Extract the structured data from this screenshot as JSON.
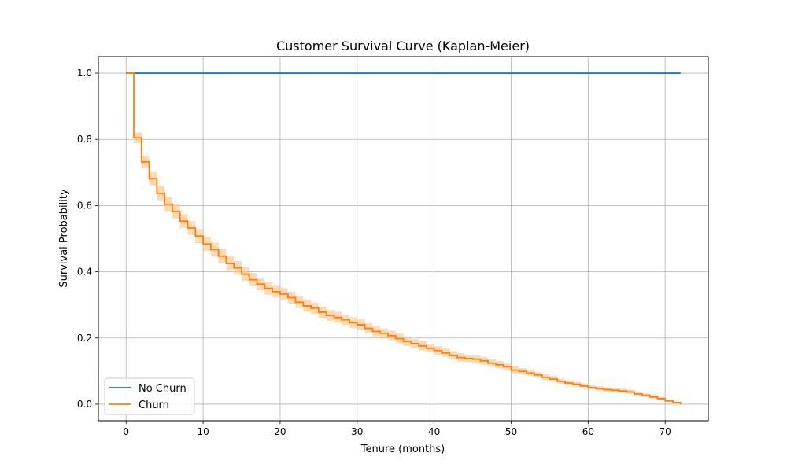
{
  "chart_data": {
    "type": "line",
    "title": "Customer Survival Curve (Kaplan-Meier)",
    "xlabel": "Tenure (months)",
    "ylabel": "Survival Probability",
    "xlim": [
      -3.6,
      75.6
    ],
    "ylim": [
      -0.05,
      1.05
    ],
    "x_ticks": [
      0,
      10,
      20,
      30,
      40,
      50,
      60,
      70
    ],
    "x_tick_labels": [
      "0",
      "10",
      "20",
      "30",
      "40",
      "50",
      "60",
      "70"
    ],
    "y_ticks": [
      0.0,
      0.2,
      0.4,
      0.6,
      0.8,
      1.0
    ],
    "y_tick_labels": [
      "0.0",
      "0.2",
      "0.4",
      "0.6",
      "0.8",
      "1.0"
    ],
    "grid": true,
    "legend_position": "lower-left",
    "step": "post",
    "series": [
      {
        "name": "No Churn",
        "color": "#1f77b4",
        "x": [
          0,
          72
        ],
        "y": [
          1.0,
          1.0
        ]
      },
      {
        "name": "Churn",
        "color": "#ff7f0e",
        "ci_color": "#ffbb78",
        "x": [
          0,
          1,
          2,
          3,
          4,
          5,
          6,
          7,
          8,
          9,
          10,
          11,
          12,
          13,
          14,
          15,
          16,
          17,
          18,
          19,
          20,
          21,
          22,
          23,
          24,
          25,
          26,
          27,
          28,
          29,
          30,
          31,
          32,
          33,
          34,
          35,
          36,
          37,
          38,
          39,
          40,
          41,
          42,
          43,
          44,
          45,
          46,
          47,
          48,
          49,
          50,
          51,
          52,
          53,
          54,
          55,
          56,
          57,
          58,
          59,
          60,
          61,
          62,
          63,
          64,
          65,
          66,
          67,
          68,
          69,
          70,
          71,
          72
        ],
        "y": [
          1.0,
          0.805,
          0.732,
          0.681,
          0.637,
          0.604,
          0.582,
          0.553,
          0.532,
          0.508,
          0.484,
          0.467,
          0.447,
          0.425,
          0.412,
          0.393,
          0.376,
          0.363,
          0.35,
          0.34,
          0.333,
          0.322,
          0.308,
          0.297,
          0.29,
          0.278,
          0.268,
          0.262,
          0.255,
          0.246,
          0.24,
          0.229,
          0.22,
          0.214,
          0.207,
          0.198,
          0.19,
          0.183,
          0.176,
          0.169,
          0.162,
          0.155,
          0.147,
          0.141,
          0.138,
          0.136,
          0.131,
          0.124,
          0.119,
          0.113,
          0.103,
          0.099,
          0.094,
          0.088,
          0.081,
          0.076,
          0.069,
          0.064,
          0.06,
          0.055,
          0.05,
          0.047,
          0.044,
          0.042,
          0.04,
          0.037,
          0.031,
          0.027,
          0.022,
          0.017,
          0.01,
          0.005,
          0.0
        ],
        "ci_lower": [
          1.0,
          0.788,
          0.713,
          0.661,
          0.616,
          0.583,
          0.56,
          0.532,
          0.511,
          0.487,
          0.463,
          0.446,
          0.426,
          0.405,
          0.392,
          0.373,
          0.357,
          0.344,
          0.331,
          0.322,
          0.315,
          0.304,
          0.291,
          0.28,
          0.273,
          0.261,
          0.252,
          0.246,
          0.239,
          0.23,
          0.224,
          0.214,
          0.205,
          0.199,
          0.193,
          0.184,
          0.176,
          0.169,
          0.163,
          0.156,
          0.149,
          0.143,
          0.135,
          0.129,
          0.127,
          0.125,
          0.12,
          0.113,
          0.108,
          0.103,
          0.093,
          0.09,
          0.085,
          0.08,
          0.073,
          0.068,
          0.062,
          0.057,
          0.053,
          0.048,
          0.044,
          0.041,
          0.038,
          0.036,
          0.034,
          0.031,
          0.026,
          0.022,
          0.017,
          0.013,
          0.007,
          0.002,
          0.0
        ],
        "ci_upper": [
          1.0,
          0.821,
          0.751,
          0.701,
          0.658,
          0.625,
          0.604,
          0.574,
          0.553,
          0.529,
          0.505,
          0.488,
          0.468,
          0.446,
          0.432,
          0.413,
          0.396,
          0.382,
          0.369,
          0.358,
          0.351,
          0.34,
          0.326,
          0.315,
          0.307,
          0.295,
          0.285,
          0.279,
          0.271,
          0.262,
          0.256,
          0.245,
          0.235,
          0.229,
          0.222,
          0.213,
          0.204,
          0.197,
          0.19,
          0.182,
          0.175,
          0.168,
          0.16,
          0.154,
          0.15,
          0.148,
          0.143,
          0.136,
          0.131,
          0.124,
          0.114,
          0.109,
          0.104,
          0.097,
          0.09,
          0.085,
          0.077,
          0.072,
          0.068,
          0.063,
          0.057,
          0.054,
          0.051,
          0.049,
          0.047,
          0.044,
          0.037,
          0.033,
          0.028,
          0.022,
          0.014,
          0.008,
          0.0
        ]
      }
    ]
  }
}
